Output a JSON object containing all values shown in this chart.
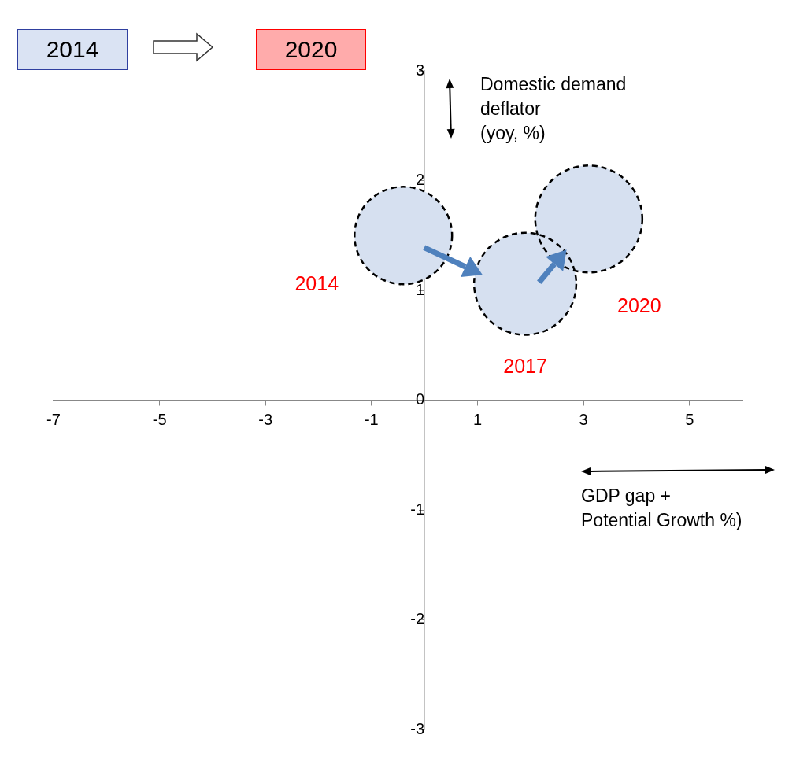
{
  "chart_data": {
    "type": "bubble",
    "xlabel": "GDP gap +\nPotential Growth %)",
    "ylabel": "Domestic demand\ndeflator\n(yoy, %)",
    "x": [
      -0.4,
      1.9,
      3.1
    ],
    "series": [
      {
        "color": "#d6e0f0",
        "values": [
          1.5,
          1.06,
          1.65
        ],
        "sizes": [
          0.83,
          0.91,
          1
        ]
      }
    ],
    "xlim": [
      -7,
      6
    ],
    "xticks": [
      -7,
      -5,
      -3,
      -1,
      1,
      3,
      5
    ],
    "ylim": [
      -3,
      3
    ],
    "yticks": [
      -3,
      -2,
      -1,
      0,
      1,
      2,
      3
    ],
    "grid": false,
    "legend": false,
    "annotations": [
      "2014",
      "2020",
      "2014",
      "2017",
      "2020"
    ]
  }
}
